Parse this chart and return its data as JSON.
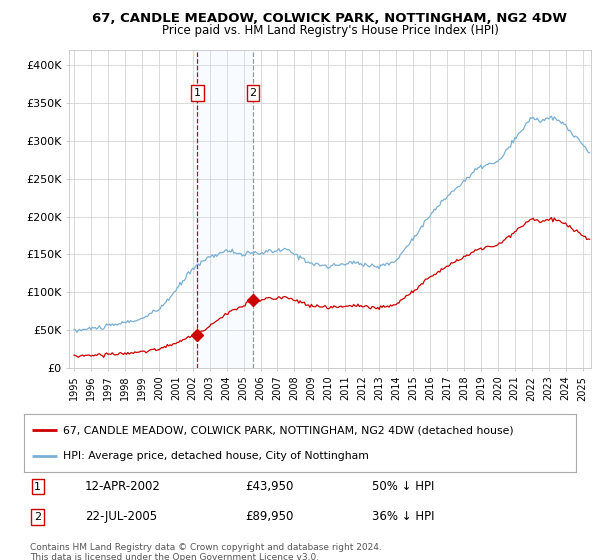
{
  "title1": "67, CANDLE MEADOW, COLWICK PARK, NOTTINGHAM, NG2 4DW",
  "title2": "Price paid vs. HM Land Registry's House Price Index (HPI)",
  "legend_red": "67, CANDLE MEADOW, COLWICK PARK, NOTTINGHAM, NG2 4DW (detached house)",
  "legend_blue": "HPI: Average price, detached house, City of Nottingham",
  "marker1_label": "1",
  "marker1_date": "12-APR-2002",
  "marker1_price": "£43,950",
  "marker1_hpi": "50% ↓ HPI",
  "marker1_x": 2002.28,
  "marker1_y_red": 43950,
  "marker2_label": "2",
  "marker2_date": "22-JUL-2005",
  "marker2_price": "£89,950",
  "marker2_hpi": "36% ↓ HPI",
  "marker2_x": 2005.55,
  "marker2_y_red": 89950,
  "footer": "Contains HM Land Registry data © Crown copyright and database right 2024.\nThis data is licensed under the Open Government Licence v3.0.",
  "background_color": "#ffffff",
  "plot_bg_color": "#ffffff",
  "grid_color": "#cccccc",
  "red_color": "#cc0000",
  "blue_color": "#7ab0d4",
  "span_color": "#ddeeff",
  "ylim": [
    0,
    420000
  ],
  "yticks": [
    0,
    50000,
    100000,
    150000,
    200000,
    250000,
    300000,
    350000,
    400000
  ],
  "xlim_start": 1994.7,
  "xlim_end": 2025.5
}
